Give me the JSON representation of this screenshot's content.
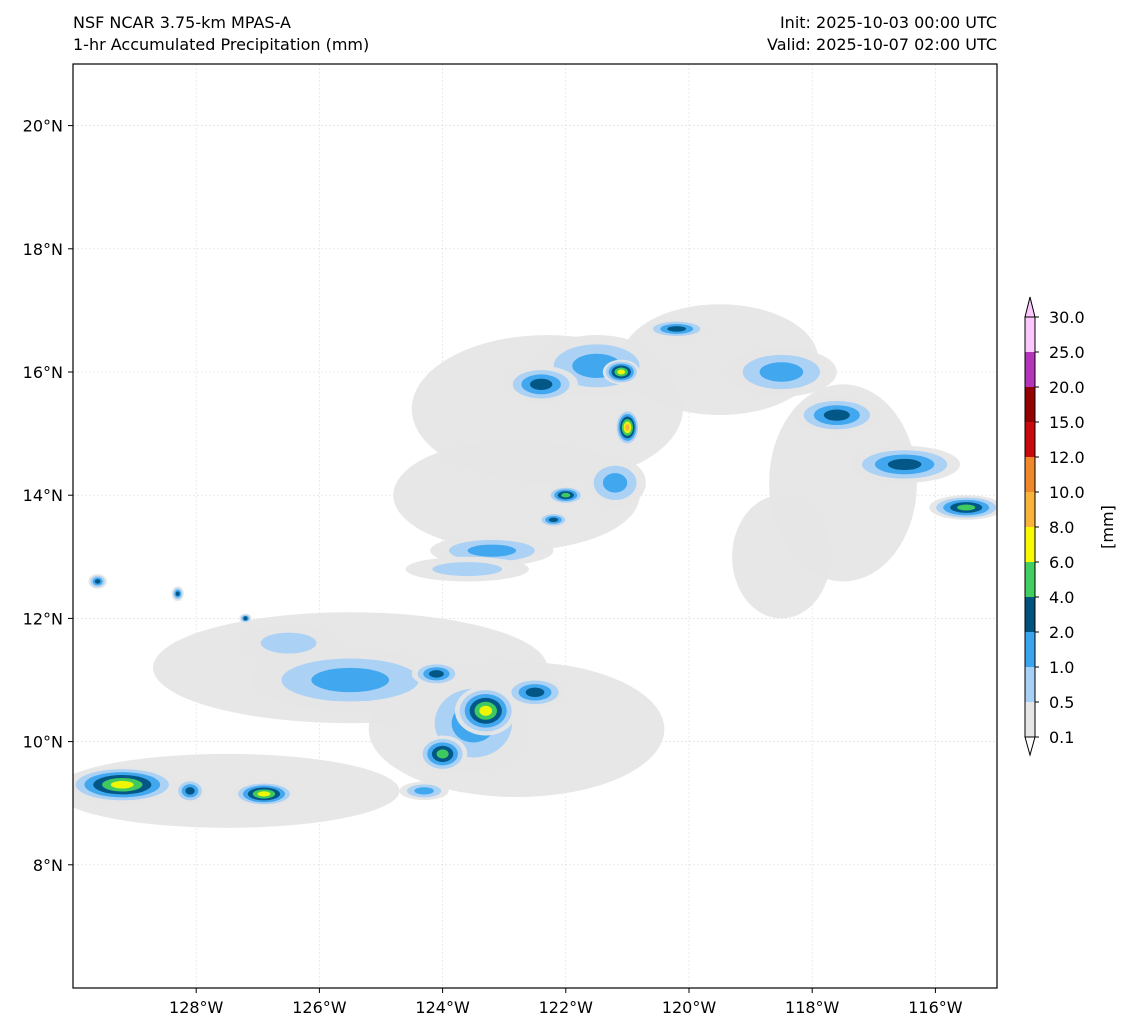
{
  "header": {
    "model": "NSF NCAR 3.75-km MPAS-A",
    "field": "1-hr Accumulated Precipitation (mm)",
    "init": "Init: 2025-10-03 00:00 UTC",
    "valid": "Valid: 2025-10-07 02:00 UTC"
  },
  "map": {
    "lon_range": [
      -130,
      -115
    ],
    "lat_range": [
      6,
      21
    ],
    "lon_ticks": [
      {
        "value": -128,
        "label": "128°W"
      },
      {
        "value": -126,
        "label": "126°W"
      },
      {
        "value": -124,
        "label": "124°W"
      },
      {
        "value": -122,
        "label": "122°W"
      },
      {
        "value": -120,
        "label": "120°W"
      },
      {
        "value": -118,
        "label": "118°W"
      },
      {
        "value": -116,
        "label": "116°W"
      }
    ],
    "lat_ticks": [
      {
        "value": 20,
        "label": "20°N"
      },
      {
        "value": 18,
        "label": "18°N"
      },
      {
        "value": 16,
        "label": "16°N"
      },
      {
        "value": 14,
        "label": "14°N"
      },
      {
        "value": 12,
        "label": "12°N"
      },
      {
        "value": 10,
        "label": "10°N"
      },
      {
        "value": 8,
        "label": "8°N"
      }
    ],
    "gridlines": true,
    "precip_features": [
      {
        "lon": -122.3,
        "lat": 15.4,
        "rx": 2.2,
        "ry": 1.2,
        "level": 0
      },
      {
        "lon": -119.5,
        "lat": 16.2,
        "rx": 1.6,
        "ry": 0.9,
        "level": 0
      },
      {
        "lon": -117.5,
        "lat": 14.2,
        "rx": 1.2,
        "ry": 1.6,
        "level": 0
      },
      {
        "lon": -118.5,
        "lat": 13.0,
        "rx": 0.8,
        "ry": 1.0,
        "level": 0
      },
      {
        "lon": -122.8,
        "lat": 14.0,
        "rx": 2.0,
        "ry": 0.9,
        "level": 0
      },
      {
        "lon": -125.5,
        "lat": 11.2,
        "rx": 3.2,
        "ry": 0.9,
        "level": 0
      },
      {
        "lon": -122.8,
        "lat": 10.2,
        "rx": 2.4,
        "ry": 1.1,
        "level": 0
      },
      {
        "lon": -127.5,
        "lat": 9.2,
        "rx": 2.8,
        "ry": 0.6,
        "level": 0
      },
      {
        "lon": -121.5,
        "lat": 16.1,
        "rx": 1.0,
        "ry": 0.5,
        "level": 2
      },
      {
        "lon": -122.4,
        "lat": 15.8,
        "rx": 0.6,
        "ry": 0.3,
        "level": 3
      },
      {
        "lon": -121.1,
        "lat": 16.0,
        "rx": 0.3,
        "ry": 0.2,
        "level": 5
      },
      {
        "lon": -121.0,
        "lat": 15.1,
        "rx": 0.2,
        "ry": 0.3,
        "level": 6
      },
      {
        "lon": -121.2,
        "lat": 14.2,
        "rx": 0.5,
        "ry": 0.4,
        "level": 2
      },
      {
        "lon": -122.0,
        "lat": 14.0,
        "rx": 0.3,
        "ry": 0.15,
        "level": 4
      },
      {
        "lon": -122.2,
        "lat": 13.6,
        "rx": 0.25,
        "ry": 0.12,
        "level": 3
      },
      {
        "lon": -123.2,
        "lat": 13.1,
        "rx": 1.0,
        "ry": 0.25,
        "level": 2
      },
      {
        "lon": -123.6,
        "lat": 12.8,
        "rx": 1.0,
        "ry": 0.2,
        "level": 1
      },
      {
        "lon": -120.2,
        "lat": 16.7,
        "rx": 0.5,
        "ry": 0.15,
        "level": 3
      },
      {
        "lon": -118.5,
        "lat": 16.0,
        "rx": 0.9,
        "ry": 0.4,
        "level": 2
      },
      {
        "lon": -117.6,
        "lat": 15.3,
        "rx": 0.7,
        "ry": 0.3,
        "level": 3
      },
      {
        "lon": -116.5,
        "lat": 14.5,
        "rx": 0.9,
        "ry": 0.3,
        "level": 3
      },
      {
        "lon": -115.5,
        "lat": 13.8,
        "rx": 0.6,
        "ry": 0.2,
        "level": 4
      },
      {
        "lon": -123.5,
        "lat": 10.3,
        "rx": 0.9,
        "ry": 0.8,
        "level": 2
      },
      {
        "lon": -123.3,
        "lat": 10.5,
        "rx": 0.5,
        "ry": 0.4,
        "level": 5
      },
      {
        "lon": -124.0,
        "lat": 9.8,
        "rx": 0.4,
        "ry": 0.3,
        "level": 4
      },
      {
        "lon": -122.5,
        "lat": 10.8,
        "rx": 0.5,
        "ry": 0.25,
        "level": 3
      },
      {
        "lon": -125.5,
        "lat": 11.0,
        "rx": 1.6,
        "ry": 0.5,
        "level": 2
      },
      {
        "lon": -124.1,
        "lat": 11.1,
        "rx": 0.4,
        "ry": 0.2,
        "level": 3
      },
      {
        "lon": -126.5,
        "lat": 11.6,
        "rx": 0.8,
        "ry": 0.3,
        "level": 1
      },
      {
        "lon": -129.2,
        "lat": 9.3,
        "rx": 0.9,
        "ry": 0.3,
        "level": 5
      },
      {
        "lon": -126.9,
        "lat": 9.15,
        "rx": 0.5,
        "ry": 0.2,
        "level": 5
      },
      {
        "lon": -128.1,
        "lat": 9.2,
        "rx": 0.25,
        "ry": 0.2,
        "level": 3
      },
      {
        "lon": -124.3,
        "lat": 9.2,
        "rx": 0.4,
        "ry": 0.15,
        "level": 2
      },
      {
        "lon": -129.6,
        "lat": 12.6,
        "rx": 0.15,
        "ry": 0.12,
        "level": 3
      },
      {
        "lon": -128.3,
        "lat": 12.4,
        "rx": 0.1,
        "ry": 0.12,
        "level": 3
      },
      {
        "lon": -127.2,
        "lat": 12.0,
        "rx": 0.1,
        "ry": 0.08,
        "level": 3
      }
    ]
  },
  "colorbar": {
    "unit": "[mm]",
    "levels": [
      "0.1",
      "0.5",
      "1.0",
      "2.0",
      "4.0",
      "6.0",
      "8.0",
      "10.0",
      "12.0",
      "15.0",
      "20.0",
      "25.0",
      "30.0"
    ],
    "colors": [
      "#e6e6e6",
      "#a8d0f5",
      "#3ba4ee",
      "#00527f",
      "#41d05f",
      "#f9f900",
      "#f9b23a",
      "#ef872c",
      "#c80a0a",
      "#940101",
      "#b434ba",
      "#fcc7fc"
    ]
  }
}
